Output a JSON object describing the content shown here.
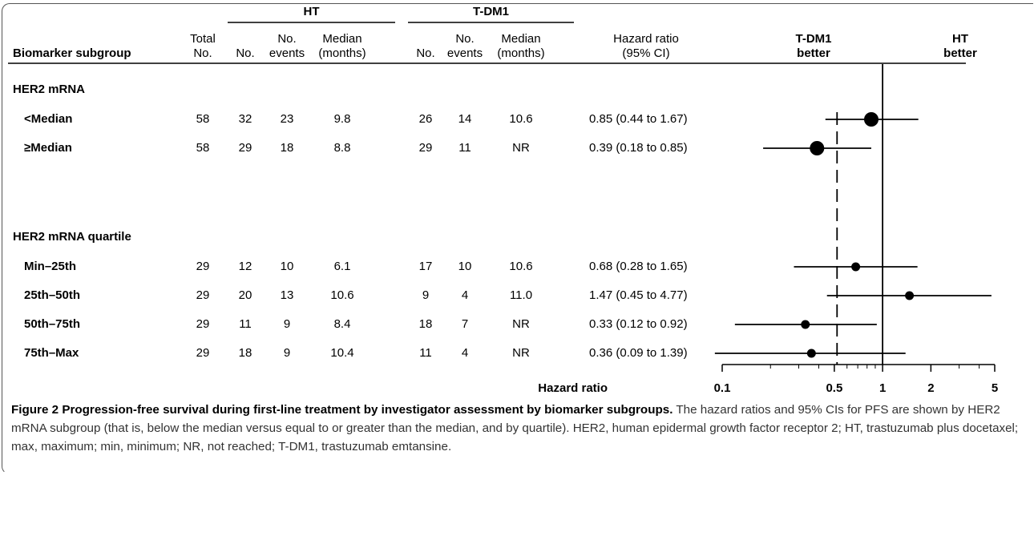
{
  "chart_data": {
    "type": "forest",
    "groups": [
      "HT",
      "T-DM1"
    ],
    "headers": [
      [
        "Biomarker subgroup"
      ],
      [
        "Total",
        "No."
      ],
      [
        "No."
      ],
      [
        "No.",
        "events"
      ],
      [
        "Median",
        "(months)"
      ],
      [
        "No."
      ],
      [
        "No.",
        "events"
      ],
      [
        "Median",
        "(months)"
      ],
      [
        "Hazard ratio",
        "(95% CI)"
      ]
    ],
    "favors": [
      [
        "T-DM1",
        "better"
      ],
      [
        "HT",
        "better"
      ]
    ],
    "sections": [
      {
        "title": "HER2 mRNA",
        "rows": [
          {
            "label": "<Median",
            "cells": [
              "58",
              "32",
              "23",
              "9.8",
              "26",
              "14",
              "10.6",
              "0.85 (0.44 to 1.67)"
            ],
            "hr": 0.85,
            "lo": 0.44,
            "hi": 1.67
          },
          {
            "label": "≥Median",
            "cells": [
              "58",
              "29",
              "18",
              "8.8",
              "29",
              "11",
              "NR",
              "0.39 (0.18 to 0.85)"
            ],
            "hr": 0.39,
            "lo": 0.18,
            "hi": 0.85
          }
        ]
      },
      {
        "title": "HER2 mRNA quartile",
        "rows": [
          {
            "label": "Min–25th",
            "cells": [
              "29",
              "12",
              "10",
              "6.1",
              "17",
              "10",
              "10.6",
              "0.68 (0.28 to 1.65)"
            ],
            "hr": 0.68,
            "lo": 0.28,
            "hi": 1.65
          },
          {
            "label": "25th–50th",
            "cells": [
              "29",
              "20",
              "13",
              "10.6",
              "9",
              "4",
              "11.0",
              "1.47 (0.45 to 4.77)"
            ],
            "hr": 1.47,
            "lo": 0.45,
            "hi": 4.77
          },
          {
            "label": "50th–75th",
            "cells": [
              "29",
              "11",
              "9",
              "8.4",
              "18",
              "7",
              "NR",
              "0.33 (0.12 to 0.92)"
            ],
            "hr": 0.33,
            "lo": 0.12,
            "hi": 0.92
          },
          {
            "label": "75th–Max",
            "cells": [
              "29",
              "18",
              "9",
              "10.4",
              "11",
              "4",
              "NR",
              "0.36 (0.09 to 1.39)"
            ],
            "hr": 0.36,
            "lo": 0.09,
            "hi": 1.39
          }
        ]
      }
    ],
    "xlabel": "Hazard ratio",
    "log_x": true,
    "xlim": [
      0.1,
      5
    ],
    "xticks": [
      0.1,
      0.5,
      1,
      2,
      5
    ],
    "xminorticks": [
      0.2,
      0.3,
      0.4,
      0.6,
      0.7,
      0.8,
      0.9,
      3,
      4
    ],
    "null_line": 1,
    "ref_line": 0.52,
    "color": "#000000"
  },
  "caption": {
    "label": "Figure 2",
    "title": "Progression-free survival during first-line treatment by investigator assessment by biomarker subgroups.",
    "text": "The hazard ratios and 95% CIs for PFS are shown by HER2 mRNA subgroup (that is, below the median versus equal to or greater than the median, and by quartile). HER2, human epidermal growth factor receptor 2; HT, trastuzumab plus docetaxel; max, maximum; min, minimum; NR, not reached; T-DM1, trastuzumab emtansine."
  }
}
